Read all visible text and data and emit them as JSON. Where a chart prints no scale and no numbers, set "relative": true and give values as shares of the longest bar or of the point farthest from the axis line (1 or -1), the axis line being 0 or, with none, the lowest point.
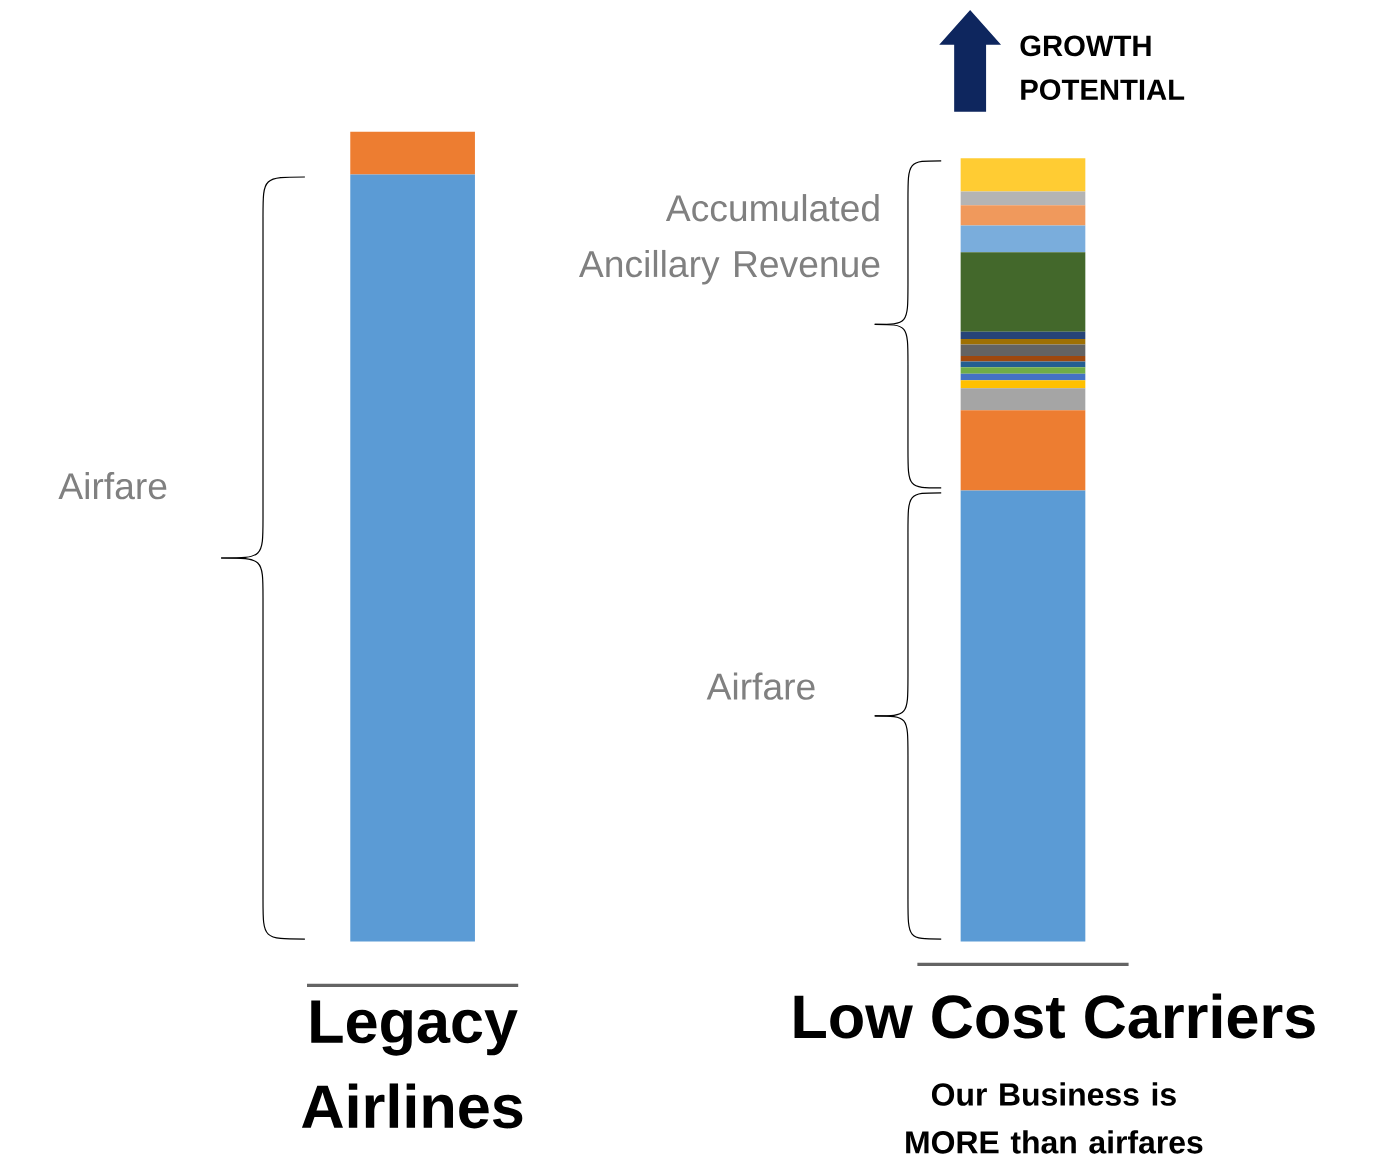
{
  "chart_data": {
    "type": "bar",
    "stacked": true,
    "relative": true,
    "categories": [
      "Legacy Airlines",
      "Low Cost Carriers"
    ],
    "series": [
      {
        "color": "#5b9bd5",
        "values": [
          0.947,
          0.557
        ]
      },
      {
        "color": "#ed7d31",
        "values": [
          0.053,
          0.099
        ]
      },
      {
        "color": "#a5a5a5",
        "values": [
          null,
          0.027
        ]
      },
      {
        "color": "#ffc000",
        "values": [
          null,
          0.01
        ]
      },
      {
        "color": "#4472c4",
        "values": [
          null,
          0.008
        ]
      },
      {
        "color": "#70ad47",
        "values": [
          null,
          0.008
        ]
      },
      {
        "color": "#255e91",
        "values": [
          null,
          0.007
        ]
      },
      {
        "color": "#9e480e",
        "values": [
          null,
          0.007
        ]
      },
      {
        "color": "#636363",
        "values": [
          null,
          0.014
        ]
      },
      {
        "color": "#9e7004",
        "values": [
          null,
          0.007
        ]
      },
      {
        "color": "#264478",
        "values": [
          null,
          0.009
        ]
      },
      {
        "color": "#43682b",
        "values": [
          null,
          0.098
        ]
      },
      {
        "color": "#7aaddc",
        "values": [
          null,
          0.033
        ]
      },
      {
        "color": "#f0995c",
        "values": [
          null,
          0.025
        ]
      },
      {
        "color": "#b4b4b4",
        "values": [
          null,
          0.017
        ]
      },
      {
        "color": "#ffcc33",
        "values": [
          null,
          0.041
        ]
      }
    ],
    "annotations": [
      "Airfare",
      "Accumulated Ancillary Revenue",
      "Airfare",
      "GROWTH POTENTIAL",
      "Our Business is MORE than airfares"
    ]
  }
}
